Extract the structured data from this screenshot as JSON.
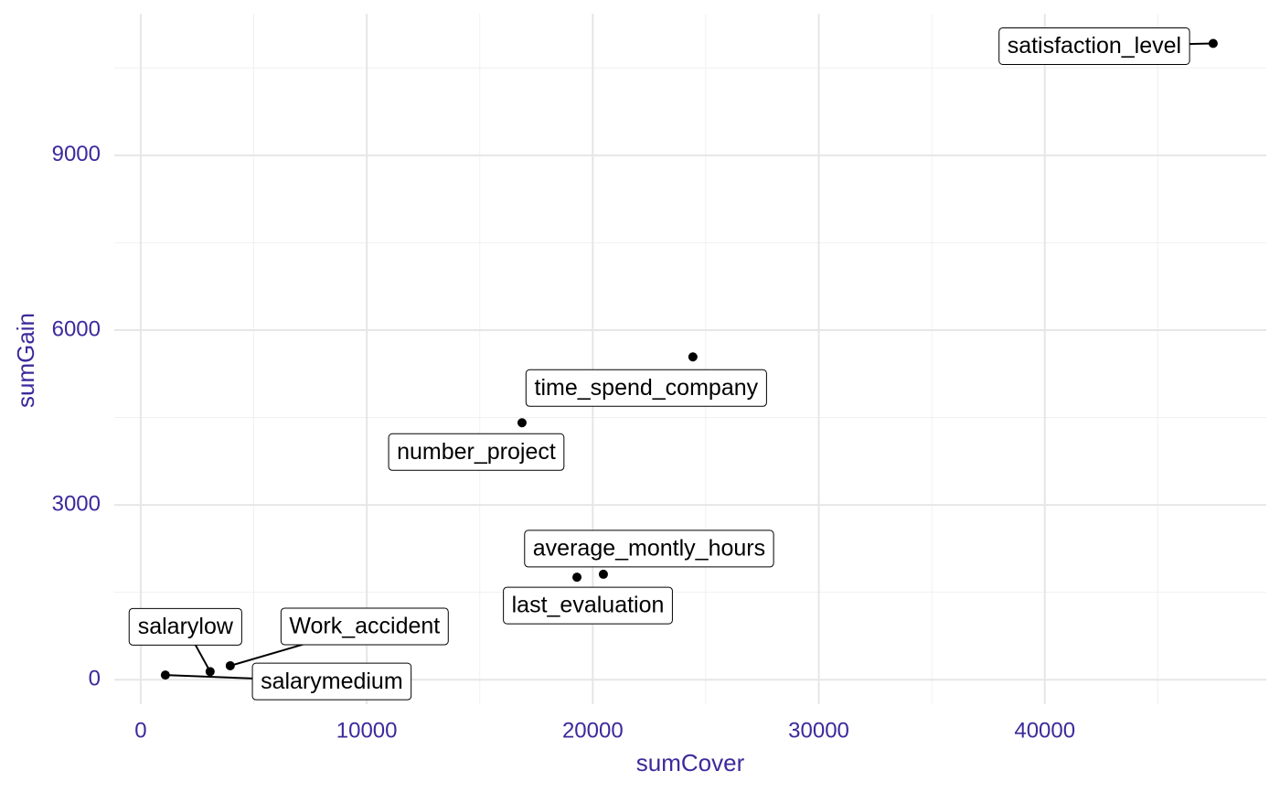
{
  "chart_data": {
    "type": "scatter",
    "x_label": "sumCover",
    "y_label": "sumGain",
    "labels": [
      "satisfaction_level",
      "time_spend_company",
      "number_project",
      "average_montly_hours",
      "last_evaluation",
      "Work_accident",
      "salarylow",
      "salarymedium"
    ],
    "x": [
      47450,
      24430,
      16870,
      20470,
      19300,
      3960,
      3070,
      1090
    ],
    "values": [
      10920,
      5540,
      4410,
      1810,
      1760,
      240,
      140,
      80
    ],
    "color": "#000000",
    "axis_color": "#3b2a9c",
    "xlim": [
      -1170,
      49800
    ],
    "ylim": [
      -420,
      11430
    ],
    "xticks": [
      0,
      10000,
      20000,
      30000,
      40000
    ],
    "yticks": [
      0,
      3000,
      6000,
      9000
    ],
    "minor_xticks": [
      5000,
      15000,
      25000,
      35000,
      45000
    ],
    "minor_yticks": [
      1500,
      4500,
      7500,
      10500
    ],
    "grid": true
  }
}
